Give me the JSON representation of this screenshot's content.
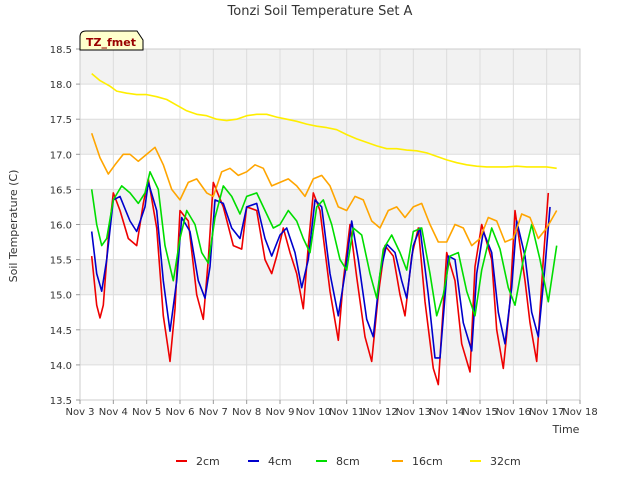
{
  "chart_data": {
    "type": "line",
    "title": "Tonzi Soil Temperature Set A",
    "xlabel": "Time",
    "ylabel": "Soil Temperature (C)",
    "annotation": "TZ_fmet",
    "xlim": [
      3,
      18
    ],
    "ylim": [
      13.5,
      18.5
    ],
    "x_ticks": [
      {
        "v": 3,
        "label": "Nov 3"
      },
      {
        "v": 4,
        "label": "Nov 4"
      },
      {
        "v": 5,
        "label": "Nov 5"
      },
      {
        "v": 6,
        "label": "Nov 6"
      },
      {
        "v": 7,
        "label": "Nov 7"
      },
      {
        "v": 8,
        "label": "Nov 8"
      },
      {
        "v": 9,
        "label": "Nov 9"
      },
      {
        "v": 10,
        "label": "Nov 10"
      },
      {
        "v": 11,
        "label": "Nov 11"
      },
      {
        "v": 12,
        "label": "Nov 12"
      },
      {
        "v": 13,
        "label": "Nov 13"
      },
      {
        "v": 14,
        "label": "Nov 14"
      },
      {
        "v": 15,
        "label": "Nov 15"
      },
      {
        "v": 16,
        "label": "Nov 16"
      },
      {
        "v": 17,
        "label": "Nov 17"
      },
      {
        "v": 18,
        "label": "Nov 18"
      }
    ],
    "y_ticks": [
      "13.5",
      "14.0",
      "14.5",
      "15.0",
      "15.5",
      "16.0",
      "16.5",
      "17.0",
      "17.5",
      "18.0",
      "18.5"
    ],
    "grid": true,
    "legend_position": "bottom",
    "series": [
      {
        "name": "2cm",
        "color": "#ee0000",
        "x": [
          3.35,
          3.5,
          3.6,
          3.7,
          3.85,
          4.0,
          4.2,
          4.45,
          4.7,
          4.9,
          5.05,
          5.3,
          5.5,
          5.7,
          5.85,
          6.0,
          6.25,
          6.5,
          6.7,
          6.85,
          7.0,
          7.3,
          7.6,
          7.85,
          8.0,
          8.3,
          8.55,
          8.75,
          8.9,
          9.1,
          9.3,
          9.5,
          9.7,
          9.85,
          10.0,
          10.2,
          10.5,
          10.75,
          10.9,
          11.1,
          11.3,
          11.55,
          11.75,
          11.95,
          12.15,
          12.4,
          12.6,
          12.75,
          12.95,
          13.15,
          13.35,
          13.6,
          13.75,
          14.0,
          14.25,
          14.45,
          14.7,
          14.85,
          15.05,
          15.35,
          15.5,
          15.7,
          15.9,
          16.05,
          16.35,
          16.5,
          16.7,
          16.9,
          17.05
        ],
        "y": [
          15.55,
          14.85,
          14.67,
          14.85,
          15.8,
          16.45,
          16.2,
          15.8,
          15.7,
          16.3,
          16.65,
          15.95,
          14.7,
          14.05,
          14.8,
          16.2,
          16.05,
          15.0,
          14.65,
          15.5,
          16.6,
          16.25,
          15.7,
          15.65,
          16.25,
          16.2,
          15.5,
          15.3,
          15.55,
          15.95,
          15.6,
          15.3,
          14.8,
          15.7,
          16.45,
          16.2,
          15.05,
          14.35,
          15.2,
          16.0,
          15.25,
          14.4,
          14.05,
          15.0,
          15.7,
          15.55,
          15.0,
          14.7,
          15.55,
          15.95,
          14.9,
          13.95,
          13.72,
          15.6,
          15.2,
          14.3,
          13.9,
          15.4,
          16.0,
          15.5,
          14.5,
          13.95,
          14.9,
          16.2,
          15.2,
          14.6,
          14.05,
          15.5,
          16.45
        ]
      },
      {
        "name": "4cm",
        "color": "#0000cc",
        "x": [
          3.35,
          3.5,
          3.65,
          3.8,
          4.0,
          4.2,
          4.5,
          4.7,
          4.95,
          5.05,
          5.3,
          5.5,
          5.7,
          5.9,
          6.05,
          6.3,
          6.55,
          6.75,
          6.9,
          7.05,
          7.3,
          7.55,
          7.8,
          8.0,
          8.3,
          8.55,
          8.75,
          9.0,
          9.2,
          9.45,
          9.65,
          9.85,
          10.05,
          10.25,
          10.5,
          10.75,
          10.95,
          11.15,
          11.35,
          11.6,
          11.8,
          12.0,
          12.2,
          12.45,
          12.65,
          12.8,
          13.0,
          13.2,
          13.45,
          13.65,
          13.8,
          14.05,
          14.25,
          14.5,
          14.75,
          14.9,
          15.1,
          15.35,
          15.55,
          15.75,
          15.95,
          16.1,
          16.35,
          16.55,
          16.75,
          16.95,
          17.1
        ],
        "y": [
          15.9,
          15.3,
          15.05,
          15.5,
          16.35,
          16.4,
          16.05,
          15.9,
          16.25,
          16.6,
          16.2,
          15.2,
          14.48,
          15.2,
          16.1,
          15.9,
          15.2,
          14.95,
          15.4,
          16.35,
          16.3,
          15.95,
          15.8,
          16.25,
          16.3,
          15.8,
          15.55,
          15.85,
          15.95,
          15.6,
          15.1,
          15.5,
          16.35,
          16.25,
          15.3,
          14.7,
          15.3,
          16.05,
          15.5,
          14.65,
          14.4,
          15.3,
          15.72,
          15.6,
          15.2,
          14.95,
          15.7,
          15.95,
          15.0,
          14.1,
          14.1,
          15.55,
          15.5,
          14.6,
          14.2,
          15.3,
          15.9,
          15.6,
          14.75,
          14.3,
          15.1,
          16.05,
          15.55,
          14.75,
          14.4,
          15.4,
          16.25
        ]
      },
      {
        "name": "8cm",
        "color": "#00dd00",
        "x": [
          3.35,
          3.5,
          3.65,
          3.8,
          4.0,
          4.25,
          4.5,
          4.75,
          4.95,
          5.1,
          5.35,
          5.55,
          5.8,
          6.0,
          6.2,
          6.45,
          6.65,
          6.85,
          7.05,
          7.3,
          7.55,
          7.8,
          8.0,
          8.3,
          8.55,
          8.8,
          9.0,
          9.25,
          9.5,
          9.7,
          9.9,
          10.1,
          10.3,
          10.55,
          10.8,
          11.0,
          11.2,
          11.45,
          11.7,
          11.9,
          12.1,
          12.35,
          12.6,
          12.8,
          13.0,
          13.25,
          13.5,
          13.7,
          13.9,
          14.1,
          14.35,
          14.6,
          14.85,
          15.05,
          15.35,
          15.6,
          15.85,
          16.05,
          16.3,
          16.55,
          16.8,
          17.05,
          17.3
        ],
        "y": [
          16.5,
          16.0,
          15.7,
          15.8,
          16.35,
          16.55,
          16.45,
          16.3,
          16.45,
          16.75,
          16.5,
          15.7,
          15.2,
          15.8,
          16.2,
          16.0,
          15.6,
          15.45,
          16.1,
          16.55,
          16.4,
          16.15,
          16.4,
          16.45,
          16.2,
          15.95,
          16.0,
          16.2,
          16.05,
          15.8,
          15.6,
          16.25,
          16.35,
          16.0,
          15.5,
          15.35,
          15.95,
          15.85,
          15.3,
          14.95,
          15.65,
          15.85,
          15.6,
          15.35,
          15.9,
          15.95,
          15.3,
          14.7,
          15.0,
          15.55,
          15.6,
          15.05,
          14.7,
          15.35,
          15.95,
          15.65,
          15.1,
          14.85,
          15.5,
          16.0,
          15.5,
          14.9,
          15.7
        ]
      },
      {
        "name": "16cm",
        "color": "#ffa500",
        "x": [
          3.35,
          3.6,
          3.85,
          4.05,
          4.3,
          4.5,
          4.75,
          5.0,
          5.25,
          5.5,
          5.75,
          6.0,
          6.25,
          6.5,
          6.8,
          7.0,
          7.25,
          7.5,
          7.75,
          8.0,
          8.25,
          8.5,
          8.75,
          9.0,
          9.25,
          9.5,
          9.75,
          10.0,
          10.25,
          10.5,
          10.75,
          11.0,
          11.25,
          11.5,
          11.75,
          12.0,
          12.25,
          12.5,
          12.75,
          13.0,
          13.25,
          13.5,
          13.75,
          14.0,
          14.25,
          14.5,
          14.75,
          15.0,
          15.25,
          15.5,
          15.75,
          16.0,
          16.25,
          16.5,
          16.75,
          17.0,
          17.3
        ],
        "y": [
          17.3,
          16.95,
          16.72,
          16.85,
          17.0,
          17.0,
          16.9,
          17.0,
          17.1,
          16.85,
          16.5,
          16.35,
          16.6,
          16.65,
          16.45,
          16.4,
          16.75,
          16.8,
          16.7,
          16.75,
          16.85,
          16.8,
          16.55,
          16.6,
          16.65,
          16.55,
          16.4,
          16.65,
          16.7,
          16.55,
          16.25,
          16.2,
          16.4,
          16.35,
          16.05,
          15.95,
          16.2,
          16.25,
          16.1,
          16.25,
          16.3,
          16.0,
          15.75,
          15.75,
          16.0,
          15.95,
          15.7,
          15.8,
          16.1,
          16.05,
          15.75,
          15.8,
          16.15,
          16.1,
          15.8,
          15.95,
          16.2
        ]
      },
      {
        "name": "32cm",
        "color": "#ffee00",
        "x": [
          3.35,
          3.6,
          3.9,
          4.1,
          4.4,
          4.7,
          5.0,
          5.3,
          5.6,
          5.9,
          6.2,
          6.5,
          6.8,
          7.1,
          7.4,
          7.7,
          8.0,
          8.3,
          8.6,
          8.9,
          9.2,
          9.5,
          9.8,
          10.1,
          10.4,
          10.7,
          11.0,
          11.3,
          11.6,
          11.9,
          12.2,
          12.5,
          12.8,
          13.1,
          13.4,
          13.7,
          14.0,
          14.3,
          14.6,
          14.9,
          15.2,
          15.5,
          15.8,
          16.1,
          16.4,
          16.7,
          17.0,
          17.3
        ],
        "y": [
          18.15,
          18.05,
          17.97,
          17.9,
          17.87,
          17.85,
          17.85,
          17.82,
          17.78,
          17.7,
          17.62,
          17.57,
          17.55,
          17.5,
          17.48,
          17.5,
          17.55,
          17.57,
          17.57,
          17.53,
          17.5,
          17.47,
          17.43,
          17.4,
          17.38,
          17.35,
          17.28,
          17.22,
          17.17,
          17.12,
          17.08,
          17.08,
          17.06,
          17.05,
          17.02,
          16.97,
          16.92,
          16.88,
          16.85,
          16.83,
          16.82,
          16.82,
          16.82,
          16.83,
          16.82,
          16.82,
          16.82,
          16.8
        ]
      }
    ]
  }
}
